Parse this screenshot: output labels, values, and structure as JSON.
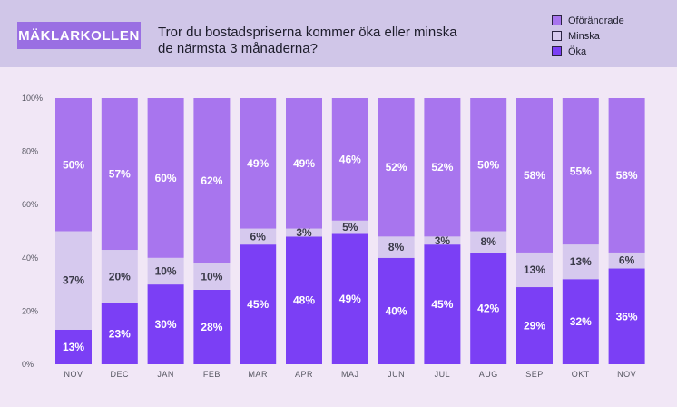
{
  "brand": "MÄKLARKOLLEN",
  "chart_data": {
    "type": "bar",
    "stacked": true,
    "title_line1": "Tror du bostadspriserna kommer öka eller minska",
    "title_line2": "de närmsta 3 månaderna?",
    "categories": [
      "NOV",
      "DEC",
      "JAN",
      "FEB",
      "MAR",
      "APR",
      "MAJ",
      "JUN",
      "JUL",
      "AUG",
      "SEP",
      "OKT",
      "NOV"
    ],
    "series": [
      {
        "name": "Öka",
        "color": "#7b3ff5",
        "text_color": "#ffffff",
        "values": [
          13,
          23,
          30,
          28,
          45,
          48,
          49,
          40,
          45,
          42,
          29,
          32,
          36
        ],
        "labels": [
          "13%",
          "23%",
          "30%",
          "28%",
          "45%",
          "48%",
          "49%",
          "40%",
          "45%",
          "42%",
          "29%",
          "32%",
          "36%"
        ]
      },
      {
        "name": "Minska",
        "color": "#d6c9ee",
        "text_color": "#3a3a48",
        "values": [
          37,
          20,
          10,
          10,
          6,
          3,
          5,
          8,
          3,
          8,
          13,
          13,
          6
        ],
        "labels": [
          "37%",
          "20%",
          "10%",
          "10%",
          "6%",
          "3%",
          "5%",
          "8%",
          "3%",
          "8%",
          "13%",
          "13%",
          "6%"
        ]
      },
      {
        "name": "Oförändrade",
        "color": "#a875ee",
        "text_color": "#ffffff",
        "values": [
          50,
          57,
          60,
          62,
          49,
          49,
          46,
          52,
          52,
          50,
          58,
          55,
          58
        ],
        "labels": [
          "50%",
          "57%",
          "60%",
          "62%",
          "49%",
          "49%",
          "46%",
          "52%",
          "52%",
          "50%",
          "58%",
          "55%",
          "58%"
        ]
      }
    ],
    "legend_order": [
      "Oförändrade",
      "Minska",
      "Öka"
    ],
    "yticks": [
      0,
      20,
      40,
      60,
      80,
      100
    ],
    "ytick_labels": [
      "0%",
      "20%",
      "40%",
      "60%",
      "80%",
      "100%"
    ],
    "ylim": [
      0,
      100
    ],
    "legend_position": "top-right"
  }
}
